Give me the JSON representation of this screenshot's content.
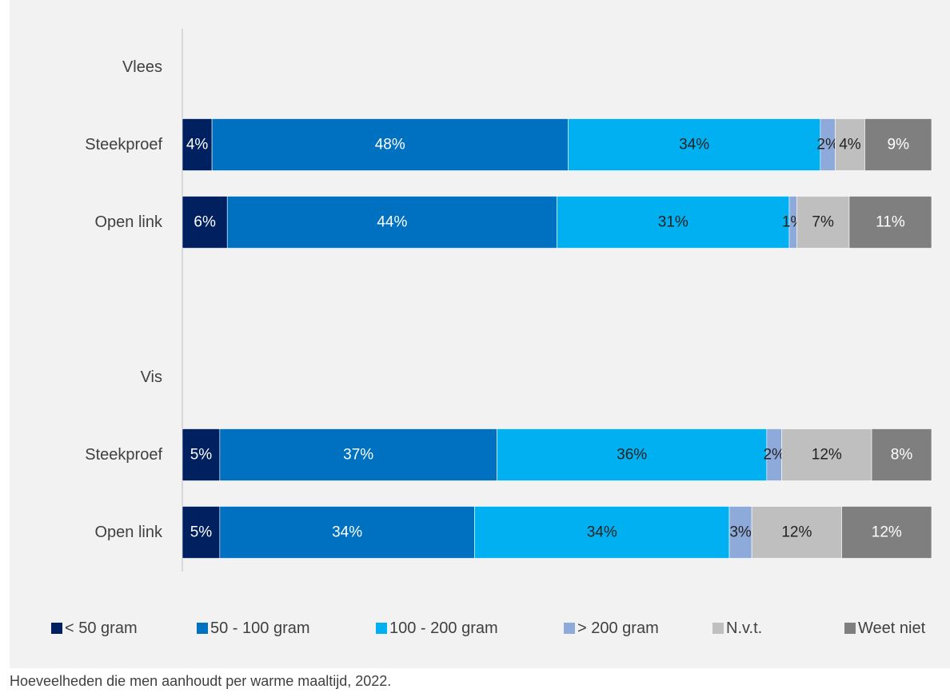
{
  "caption": "Hoeveelheden die men aanhoudt per warme maaltijd, 2022.",
  "colors": {
    "lt50": "#002060",
    "50_100": "#0070c0",
    "100_200": "#00b0f0",
    "gt200": "#8eaadb",
    "nvt": "#bfbfbf",
    "weetniet": "#7f7f7f",
    "label_dark": "#222222",
    "label_light": "#ffffff"
  },
  "chart_data": {
    "type": "bar",
    "orientation": "horizontal",
    "stacked": true,
    "percent": true,
    "title": "",
    "xlabel": "",
    "ylabel": "",
    "xlim": [
      0,
      100
    ],
    "grid": false,
    "legend_position": "bottom",
    "series_names": [
      "< 50 gram",
      "50 - 100 gram",
      "100 - 200 gram",
      "> 200 gram",
      "N.v.t.",
      "Weet niet"
    ],
    "groups": [
      {
        "label": "Vlees",
        "rows": [
          {
            "label": "Steekproef",
            "values": [
              4,
              48,
              34,
              2,
              4,
              9
            ],
            "labels": [
              "4%",
              "48%",
              "34%",
              "2%",
              "4%",
              "9%"
            ]
          },
          {
            "label": "Open link",
            "values": [
              6,
              44,
              31,
              1,
              7,
              11
            ],
            "labels": [
              "6%",
              "44%",
              "31%",
              "1%",
              "7%",
              "11%"
            ]
          }
        ]
      },
      {
        "label": "Vis",
        "rows": [
          {
            "label": "Steekproef",
            "values": [
              5,
              37,
              36,
              2,
              12,
              8
            ],
            "labels": [
              "5%",
              "37%",
              "36%",
              "2%",
              "12%",
              "8%"
            ]
          },
          {
            "label": "Open link",
            "values": [
              5,
              34,
              34,
              3,
              12,
              12
            ],
            "labels": [
              "5%",
              "34%",
              "34%",
              "3%",
              "12%",
              "12%"
            ]
          }
        ]
      }
    ]
  }
}
